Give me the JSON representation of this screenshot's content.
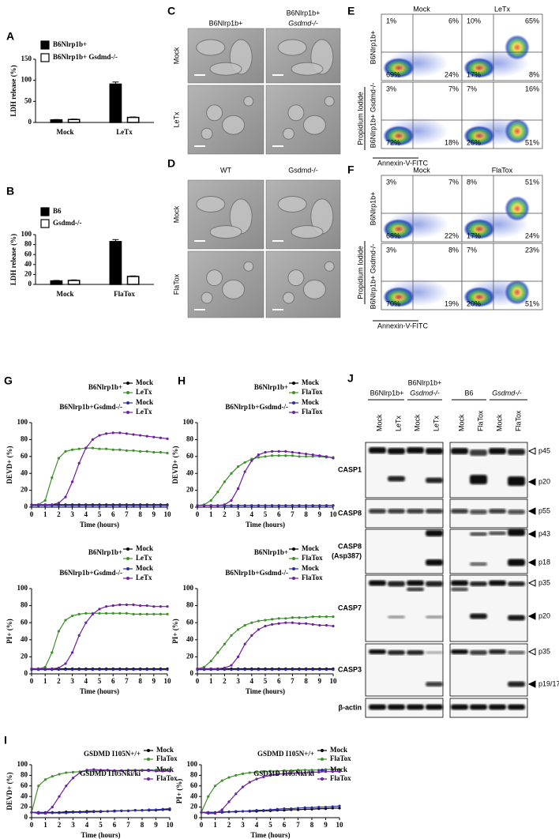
{
  "chart_data": [
    {
      "panel": "A",
      "type": "bar",
      "legend": "upper left",
      "ylabel": "LDH release (%)",
      "categories": [
        "Mock",
        "LeTx"
      ],
      "ylim": [
        0,
        150
      ],
      "yticks": [
        0,
        50,
        100,
        150
      ],
      "series": [
        {
          "name": "B6Nlrp1b+",
          "color": "#000000",
          "values": [
            6,
            91
          ],
          "errors": [
            1,
            5
          ]
        },
        {
          "name": "B6Nlrp1b+ Gsdmd-/-",
          "color": "#ffffff",
          "values": [
            7,
            12
          ],
          "errors": [
            1,
            1
          ]
        }
      ]
    },
    {
      "panel": "B",
      "type": "bar",
      "legend": "upper left",
      "ylabel": "LDH release (%)",
      "categories": [
        "Mock",
        "FlaTox"
      ],
      "ylim": [
        0,
        100
      ],
      "yticks": [
        0,
        20,
        40,
        60,
        80,
        100
      ],
      "series": [
        {
          "name": "B6",
          "color": "#000000",
          "values": [
            7,
            86
          ],
          "errors": [
            1,
            4
          ]
        },
        {
          "name": "Gsdmd-/-",
          "color": "#ffffff",
          "values": [
            8,
            16
          ],
          "errors": [
            1,
            1
          ]
        }
      ]
    },
    {
      "panel": "G",
      "type": "line",
      "ylabel": "DEVD+ (%)",
      "xlabel": "Time (hours)",
      "legend_groups": [
        "B6Nlrp1b+",
        "B6Nlrp1b+Gsdmd-/-"
      ],
      "x": [
        0,
        0.5,
        1,
        1.5,
        2,
        2.5,
        3,
        3.5,
        4,
        4.5,
        5,
        5.5,
        6,
        6.5,
        7,
        7.5,
        8,
        8.5,
        9,
        9.5,
        10
      ],
      "xlim": [
        0,
        10
      ],
      "xticks": [
        0,
        1,
        2,
        3,
        4,
        5,
        6,
        7,
        8,
        9,
        10
      ],
      "ylim": [
        0,
        100
      ],
      "yticks": [
        0,
        20,
        40,
        60,
        80,
        100
      ],
      "series": [
        {
          "name": "Mock",
          "color": "#000000",
          "values": [
            3,
            3,
            3,
            3,
            3,
            3,
            3,
            3,
            3,
            3,
            3,
            3,
            3,
            3,
            3,
            3,
            3,
            3,
            3,
            3,
            3
          ]
        },
        {
          "name": "LeTx",
          "color": "#3f8f2c",
          "values": [
            3,
            3,
            8,
            35,
            58,
            66,
            68,
            69,
            70,
            70,
            69,
            69,
            68,
            68,
            67,
            67,
            66,
            66,
            65,
            65,
            64
          ]
        },
        {
          "name": "Mock",
          "color": "#2b2ba6",
          "values": [
            2,
            2,
            2,
            2,
            2,
            2,
            2,
            2,
            2,
            2,
            2,
            2,
            2,
            2,
            2,
            2,
            2,
            2,
            2,
            2,
            2
          ]
        },
        {
          "name": "LeTx",
          "color": "#6b1fa3",
          "values": [
            3,
            3,
            3,
            3,
            5,
            12,
            30,
            52,
            70,
            80,
            85,
            87,
            88,
            88,
            87,
            86,
            85,
            84,
            83,
            82,
            81
          ]
        }
      ]
    },
    {
      "type": "line",
      "ylabel": "PI+ (%)",
      "xlabel": "Time (hours)",
      "legend_groups": [
        "B6Nlrp1b+",
        "B6Nlrp1b+Gsdmd-/-"
      ],
      "x": [
        0,
        0.5,
        1,
        1.5,
        2,
        2.5,
        3,
        3.5,
        4,
        4.5,
        5,
        5.5,
        6,
        6.5,
        7,
        7.5,
        8,
        8.5,
        9,
        9.5,
        10
      ],
      "xlim": [
        0,
        10
      ],
      "xticks": [
        0,
        1,
        2,
        3,
        4,
        5,
        6,
        7,
        8,
        9,
        10
      ],
      "ylim": [
        0,
        100
      ],
      "yticks": [
        0,
        20,
        40,
        60,
        80,
        100
      ],
      "series": [
        {
          "name": "Mock",
          "color": "#000000",
          "values": [
            6,
            6,
            6,
            6,
            6,
            6,
            6,
            6,
            6,
            6,
            6,
            6,
            6,
            6,
            6,
            6,
            6,
            6,
            6,
            6,
            6
          ]
        },
        {
          "name": "LeTx",
          "color": "#3f8f2c",
          "values": [
            6,
            6,
            8,
            25,
            50,
            63,
            68,
            70,
            71,
            71,
            71,
            71,
            71,
            71,
            71,
            70,
            70,
            70,
            70,
            70,
            70
          ]
        },
        {
          "name": "Mock",
          "color": "#2b2ba6",
          "values": [
            5,
            5,
            5,
            5,
            5,
            5,
            5,
            5,
            5,
            5,
            5,
            5,
            5,
            5,
            5,
            5,
            5,
            5,
            5,
            5,
            5
          ]
        },
        {
          "name": "LeTx",
          "color": "#6b1fa3",
          "values": [
            6,
            6,
            6,
            6,
            7,
            12,
            25,
            45,
            60,
            70,
            76,
            79,
            80,
            81,
            81,
            81,
            80,
            80,
            79,
            79,
            79
          ]
        }
      ]
    },
    {
      "panel": "H",
      "type": "line",
      "ylabel": "DEVD+ (%)",
      "xlabel": "Time (hours)",
      "legend_groups": [
        "B6Nlrp1b+",
        "B6Nlrp1b+Gsdmd-/-"
      ],
      "x": [
        0,
        0.5,
        1,
        1.5,
        2,
        2.5,
        3,
        3.5,
        4,
        4.5,
        5,
        5.5,
        6,
        6.5,
        7,
        7.5,
        8,
        8.5,
        9,
        9.5,
        10
      ],
      "xlim": [
        0,
        10
      ],
      "xticks": [
        0,
        1,
        2,
        3,
        4,
        5,
        6,
        7,
        8,
        9,
        10
      ],
      "ylim": [
        0,
        100
      ],
      "yticks": [
        0,
        20,
        40,
        60,
        80,
        100
      ],
      "series": [
        {
          "name": "Mock",
          "color": "#000000",
          "values": [
            2,
            2,
            2,
            2,
            2,
            2,
            2,
            2,
            2,
            2,
            2,
            2,
            2,
            2,
            2,
            2,
            2,
            2,
            2,
            2,
            2
          ]
        },
        {
          "name": "FlaTox",
          "color": "#3f8f2c",
          "values": [
            2,
            3,
            8,
            18,
            30,
            40,
            48,
            53,
            57,
            59,
            60,
            61,
            61,
            61,
            61,
            60,
            60,
            60,
            60,
            59,
            59
          ]
        },
        {
          "name": "Mock",
          "color": "#2b2ba6",
          "values": [
            2,
            2,
            2,
            2,
            2,
            2,
            2,
            2,
            2,
            2,
            2,
            2,
            2,
            2,
            2,
            2,
            2,
            2,
            2,
            2,
            2
          ]
        },
        {
          "name": "FlaTox",
          "color": "#6b1fa3",
          "values": [
            2,
            2,
            2,
            2,
            3,
            8,
            22,
            42,
            55,
            62,
            65,
            66,
            66,
            66,
            65,
            64,
            63,
            62,
            61,
            60,
            58
          ]
        }
      ]
    },
    {
      "type": "line",
      "ylabel": "PI+ (%)",
      "xlabel": "Time (hours)",
      "legend_groups": [
        "B6Nlrp1b+",
        "B6Nlrp1b+Gsdmd-/-"
      ],
      "x": [
        0,
        0.5,
        1,
        1.5,
        2,
        2.5,
        3,
        3.5,
        4,
        4.5,
        5,
        5.5,
        6,
        6.5,
        7,
        7.5,
        8,
        8.5,
        9,
        9.5,
        10
      ],
      "xlim": [
        0,
        10
      ],
      "xticks": [
        0,
        1,
        2,
        3,
        4,
        5,
        6,
        7,
        8,
        9,
        10
      ],
      "ylim": [
        0,
        100
      ],
      "yticks": [
        0,
        20,
        40,
        60,
        80,
        100
      ],
      "series": [
        {
          "name": "Mock",
          "color": "#000000",
          "values": [
            6,
            6,
            6,
            6,
            6,
            6,
            6,
            6,
            6,
            6,
            6,
            6,
            6,
            6,
            6,
            6,
            6,
            6,
            6,
            6,
            6
          ]
        },
        {
          "name": "FlaTox",
          "color": "#3f8f2c",
          "values": [
            6,
            8,
            15,
            25,
            35,
            45,
            52,
            57,
            60,
            62,
            63,
            64,
            65,
            65,
            66,
            66,
            66,
            67,
            67,
            67,
            67
          ]
        },
        {
          "name": "Mock",
          "color": "#2b2ba6",
          "values": [
            5,
            5,
            5,
            5,
            5,
            5,
            5,
            5,
            5,
            5,
            5,
            5,
            5,
            5,
            5,
            5,
            5,
            5,
            5,
            5,
            5
          ]
        },
        {
          "name": "FlaTox",
          "color": "#6b1fa3",
          "values": [
            6,
            6,
            6,
            6,
            7,
            10,
            20,
            35,
            45,
            52,
            56,
            58,
            59,
            60,
            60,
            59,
            59,
            58,
            57,
            57,
            56
          ]
        }
      ]
    },
    {
      "panel": "I",
      "type": "line",
      "ylabel": "DEVD+ (%)",
      "xlabel": "Time (hours)",
      "legend_groups": [
        "GSDMD I105N+/+",
        "GSDMD I105Nki/ki"
      ],
      "x": [
        0,
        0.5,
        1,
        1.5,
        2,
        2.5,
        3,
        3.5,
        4,
        4.5,
        5,
        5.5,
        6,
        6.5,
        7,
        7.5,
        8,
        8.5,
        9,
        9.5,
        10
      ],
      "xlim": [
        0,
        10
      ],
      "xticks": [
        0,
        1,
        2,
        3,
        4,
        5,
        6,
        7,
        8,
        9,
        10
      ],
      "ylim": [
        0,
        100
      ],
      "yticks": [
        0,
        20,
        40,
        60,
        80,
        100
      ],
      "series": [
        {
          "name": "Mock",
          "color": "#000000",
          "values": [
            10,
            10,
            10,
            10,
            10,
            11,
            11,
            11,
            12,
            12,
            12,
            12,
            13,
            13,
            13,
            14,
            14,
            14,
            14,
            15,
            15
          ]
        },
        {
          "name": "FlaTox",
          "color": "#3f8f2c",
          "values": [
            10,
            60,
            72,
            78,
            82,
            85,
            86,
            87,
            88,
            88,
            89,
            89,
            89,
            89,
            90,
            90,
            90,
            90,
            90,
            90,
            90
          ]
        },
        {
          "name": "Mock",
          "color": "#2b2ba6",
          "values": [
            10,
            10,
            9,
            9,
            9,
            9,
            10,
            10,
            10,
            11,
            11,
            12,
            12,
            13,
            13,
            14,
            14,
            15,
            15,
            16,
            17
          ]
        },
        {
          "name": "FlaTox",
          "color": "#6b1fa3",
          "values": [
            10,
            8,
            8,
            20,
            40,
            60,
            75,
            85,
            90,
            91,
            90,
            90,
            89,
            89,
            89,
            89,
            89,
            89,
            88,
            88,
            88
          ]
        }
      ]
    },
    {
      "type": "line",
      "ylabel": "PI+ (%)",
      "xlabel": "Time (hours)",
      "legend_groups": [
        "GSDMD I105N+/+",
        "GSDMD I105Nki/ki"
      ],
      "x": [
        0,
        0.5,
        1,
        1.5,
        2,
        2.5,
        3,
        3.5,
        4,
        4.5,
        5,
        5.5,
        6,
        6.5,
        7,
        7.5,
        8,
        8.5,
        9,
        9.5,
        10
      ],
      "xlim": [
        0,
        10
      ],
      "xticks": [
        0,
        1,
        2,
        3,
        4,
        5,
        6,
        7,
        8,
        9,
        10
      ],
      "ylim": [
        0,
        100
      ],
      "yticks": [
        0,
        20,
        40,
        60,
        80,
        100
      ],
      "series": [
        {
          "name": "Mock",
          "color": "#000000",
          "values": [
            10,
            10,
            10,
            10,
            11,
            11,
            12,
            12,
            12,
            13,
            13,
            14,
            14,
            15,
            15,
            16,
            16,
            17,
            17,
            18,
            18
          ]
        },
        {
          "name": "FlaTox",
          "color": "#3f8f2c",
          "values": [
            10,
            40,
            60,
            70,
            76,
            80,
            83,
            85,
            86,
            87,
            88,
            88,
            89,
            89,
            90,
            90,
            90,
            90,
            91,
            91,
            91
          ]
        },
        {
          "name": "Mock",
          "color": "#2b2ba6",
          "values": [
            10,
            10,
            10,
            11,
            11,
            12,
            12,
            13,
            14,
            14,
            15,
            16,
            17,
            17,
            18,
            19,
            19,
            20,
            20,
            21,
            22
          ]
        },
        {
          "name": "FlaTox",
          "color": "#6b1fa3",
          "values": [
            10,
            8,
            8,
            15,
            30,
            45,
            58,
            67,
            73,
            77,
            80,
            82,
            83,
            84,
            85,
            85,
            86,
            86,
            87,
            87,
            87
          ]
        }
      ]
    }
  ],
  "panels": {
    "C": {
      "label": "C",
      "columns": [
        [
          "B6Nlrp1b+"
        ],
        [
          "B6Nlrp1b+",
          "Gsdmd-/-"
        ]
      ],
      "rows": [
        "Mock",
        "LeTx"
      ]
    },
    "D": {
      "label": "D",
      "columns": [
        [
          "WT"
        ],
        [
          "Gsdmd-/-"
        ]
      ],
      "rows": [
        "Mock",
        "FlaTox"
      ]
    },
    "E": {
      "label": "E",
      "columns": [
        "Mock",
        "LeTx"
      ],
      "rows": [
        "B6Nlrp1b+",
        "B6Nlrp1b+ Gsdmd-/-"
      ],
      "y_axis": "Propidium Iodide",
      "x_axis": "Annexin-V-FITC",
      "quadrants": [
        [
          [
            "1%",
            "6%",
            "69%",
            "24%"
          ],
          [
            "10%",
            "65%",
            "17%",
            "8%"
          ]
        ],
        [
          [
            "3%",
            "7%",
            "72%",
            "18%"
          ],
          [
            "7%",
            "16%",
            "26%",
            "51%"
          ]
        ]
      ]
    },
    "F": {
      "label": "F",
      "columns": [
        "Mock",
        "FlaTox"
      ],
      "rows": [
        "B6Nlrp1b+",
        "B6Nlrp1b+ Gsdmd-/-"
      ],
      "y_axis": "Propidium Iodide",
      "x_axis": "Annexin-V-FITC",
      "quadrants": [
        [
          [
            "3%",
            "7%",
            "68%",
            "22%"
          ],
          [
            "8%",
            "51%",
            "17%",
            "24%"
          ]
        ],
        [
          [
            "3%",
            "8%",
            "70%",
            "19%"
          ],
          [
            "7%",
            "23%",
            "20%",
            "51%"
          ]
        ]
      ]
    },
    "J": {
      "label": "J",
      "headers": [
        [
          "B6Nlrp1b+"
        ],
        [
          "B6Nlrp1b+",
          "Gsdmd-/-"
        ],
        [
          "B6"
        ],
        [
          "Gsdmd-/-"
        ]
      ],
      "lanes": [
        [
          "Mock",
          "LeTx",
          "Mock",
          "LeTx"
        ],
        [
          "Mock",
          "FlaTox",
          "Mock",
          "FlaTox"
        ]
      ],
      "rows": [
        [
          "CASP1"
        ],
        [
          "CASP8"
        ],
        [
          "CASP8",
          "(Asp387)"
        ],
        [
          "CASP7"
        ],
        [
          "CASP3"
        ],
        [
          "β-actin"
        ]
      ],
      "markers": [
        "p45",
        "p20",
        "p55",
        "p43",
        "p18",
        "p35",
        "p20",
        "p35",
        "p19/17"
      ]
    }
  }
}
